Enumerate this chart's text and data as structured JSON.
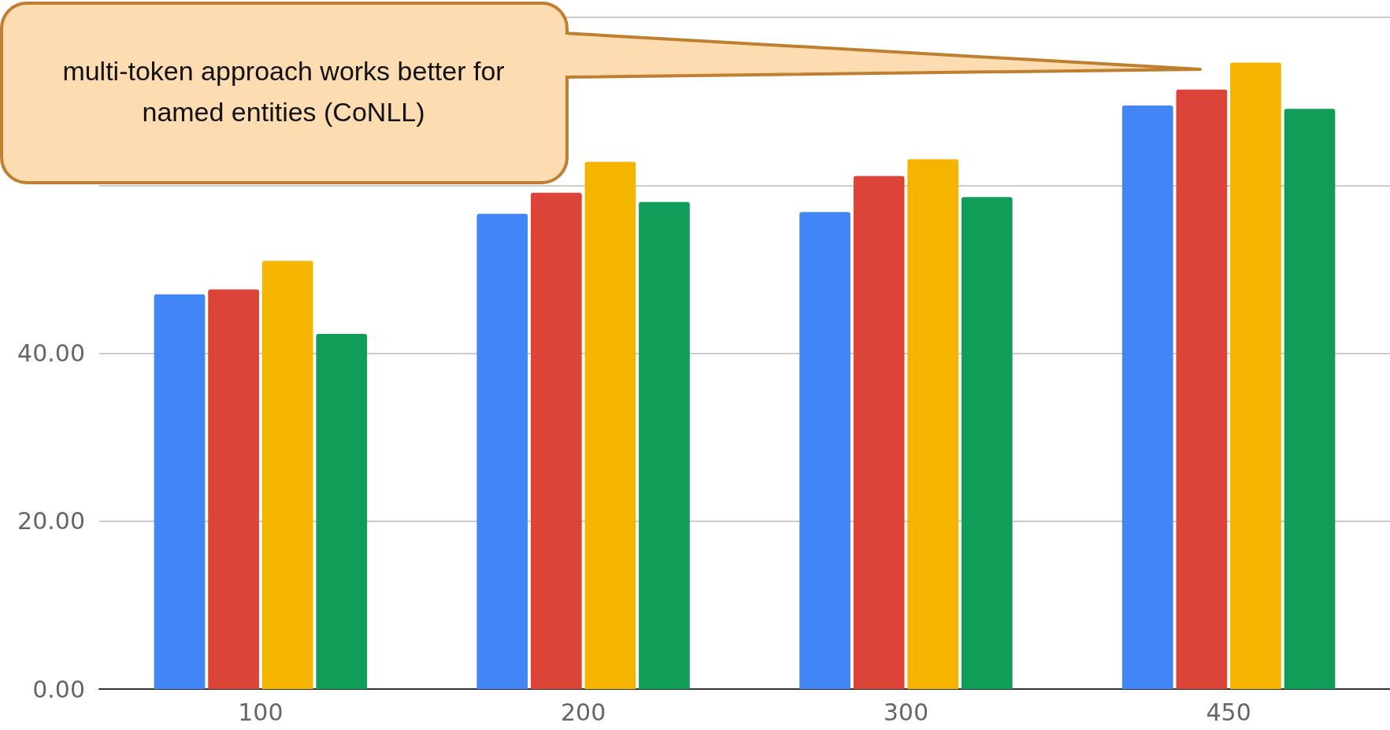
{
  "chart_data": {
    "type": "bar",
    "categories": [
      "100",
      "200",
      "300",
      "450"
    ],
    "series": [
      {
        "color": "#4285f4",
        "values": [
          47.0,
          56.6,
          56.8,
          69.5
        ]
      },
      {
        "color": "#db4437",
        "values": [
          47.6,
          59.1,
          61.1,
          71.4
        ]
      },
      {
        "color": "#f4b400",
        "values": [
          51.0,
          62.8,
          63.1,
          74.6
        ]
      },
      {
        "color": "#0f9d58",
        "values": [
          42.3,
          58.0,
          58.6,
          69.1
        ]
      }
    ],
    "ylim": [
      0,
      80
    ],
    "yticks": [
      {
        "value": 0,
        "label": "0.00"
      },
      {
        "value": 20,
        "label": "20.00"
      },
      {
        "value": 40,
        "label": "40.00"
      },
      {
        "value": 60,
        "label": null
      },
      {
        "value": 80,
        "label": null
      }
    ],
    "grid": "y",
    "annotations": [
      "multi-token approach works better for\nnamed entities (CoNLL)"
    ]
  }
}
